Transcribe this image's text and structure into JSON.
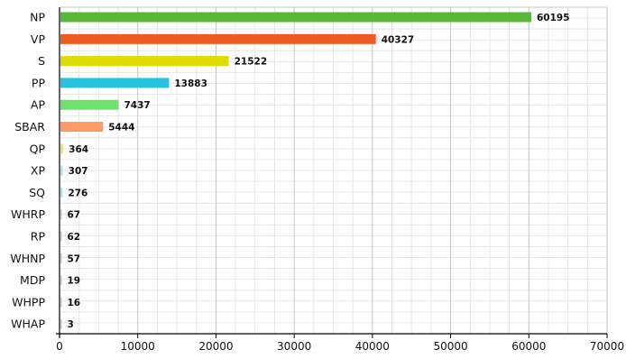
{
  "chart_data": {
    "type": "bar",
    "orientation": "horizontal",
    "categories": [
      "NP",
      "VP",
      "S",
      "PP",
      "AP",
      "SBAR",
      "QP",
      "XP",
      "SQ",
      "WHRP",
      "RP",
      "WHNP",
      "MDP",
      "WHPP",
      "WHAP"
    ],
    "values": [
      60195,
      40327,
      21522,
      13883,
      7437,
      5444,
      364,
      307,
      276,
      67,
      62,
      57,
      19,
      16,
      3
    ],
    "value_labels": [
      "60195",
      "40327",
      "21522",
      "13883",
      "7437",
      "5444",
      "364",
      "307",
      "276",
      "67",
      "62",
      "57",
      "19",
      "16",
      "3"
    ],
    "colors": [
      "#57b83a",
      "#ef5a22",
      "#dcdc00",
      "#26c3de",
      "#6ee06e",
      "#ff9966",
      "#e8e870",
      "#a8e8f0",
      "#a8e8f0",
      "#cccccc",
      "#cccccc",
      "#cccccc",
      "#cccccc",
      "#cccccc",
      "#cccccc"
    ],
    "xlim": [
      0,
      70000
    ],
    "xticks": [
      "0",
      "10000",
      "20000",
      "30000",
      "40000",
      "50000",
      "60000",
      "70000"
    ],
    "grid": true,
    "title": "",
    "xlabel": "",
    "ylabel": ""
  }
}
